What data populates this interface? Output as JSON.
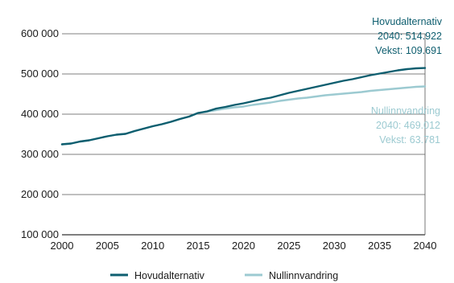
{
  "chart_data": {
    "type": "line",
    "title": "",
    "xlabel": "",
    "ylabel": "",
    "xlim": [
      2000,
      2040
    ],
    "ylim": [
      100000,
      600000
    ],
    "x_ticks": [
      2000,
      2005,
      2010,
      2015,
      2020,
      2025,
      2030,
      2035,
      2040
    ],
    "x_tick_labels": [
      "2000",
      "2005",
      "2010",
      "2015",
      "2020",
      "2025",
      "2030",
      "2035",
      "2040"
    ],
    "y_ticks": [
      100000,
      200000,
      300000,
      400000,
      500000,
      600000
    ],
    "y_tick_labels": [
      "100 000",
      "200 000",
      "300 000",
      "400 000",
      "500 000",
      "600 000"
    ],
    "grid": "horizontal",
    "legend_position": "bottom",
    "series": [
      {
        "name": "Hovudalternativ",
        "color": "#0e5e6f",
        "x": [
          2000,
          2001,
          2002,
          2003,
          2004,
          2005,
          2006,
          2007,
          2008,
          2009,
          2010,
          2011,
          2012,
          2013,
          2014,
          2015,
          2016,
          2017,
          2018,
          2019,
          2020,
          2021,
          2022,
          2023,
          2024,
          2025,
          2026,
          2027,
          2028,
          2029,
          2030,
          2031,
          2032,
          2033,
          2034,
          2035,
          2036,
          2037,
          2038,
          2039,
          2040
        ],
        "values": [
          325000,
          327000,
          332000,
          335000,
          340000,
          345000,
          349000,
          351000,
          358000,
          364000,
          370000,
          375000,
          381000,
          388000,
          394000,
          403000,
          407000,
          414000,
          418000,
          423000,
          427000,
          432000,
          437000,
          441000,
          447000,
          453000,
          458000,
          463000,
          468000,
          473000,
          478000,
          483000,
          487000,
          492000,
          497000,
          501000,
          505000,
          509000,
          512000,
          514000,
          514922
        ]
      },
      {
        "name": "Nullinnvandring",
        "color": "#9ccad1",
        "x": [
          2000,
          2001,
          2002,
          2003,
          2004,
          2005,
          2006,
          2007,
          2008,
          2009,
          2010,
          2011,
          2012,
          2013,
          2014,
          2015,
          2016,
          2017,
          2018,
          2019,
          2020,
          2021,
          2022,
          2023,
          2024,
          2025,
          2026,
          2027,
          2028,
          2029,
          2030,
          2031,
          2032,
          2033,
          2034,
          2035,
          2036,
          2037,
          2038,
          2039,
          2040
        ],
        "values": [
          325000,
          327000,
          332000,
          335000,
          340000,
          345000,
          349000,
          351000,
          358000,
          364000,
          370000,
          375000,
          381000,
          388000,
          394000,
          403000,
          406000,
          410000,
          414000,
          417000,
          419000,
          423000,
          426000,
          429000,
          433000,
          436000,
          439000,
          441000,
          444000,
          447000,
          449000,
          451000,
          453000,
          455000,
          458000,
          460000,
          462000,
          464000,
          466000,
          468000,
          469012
        ]
      }
    ],
    "annotations": [
      {
        "series": "Hovudalternativ",
        "lines": [
          "Hovudalternativ",
          "2040: 514.922",
          "Vekst: 109.691"
        ],
        "color": "#0e5e6f"
      },
      {
        "series": "Nullinnvandring",
        "lines": [
          "Nullinnvandring",
          "2040: 469.012",
          "Vekst: 63.781"
        ],
        "color": "#9ccad1"
      }
    ]
  }
}
